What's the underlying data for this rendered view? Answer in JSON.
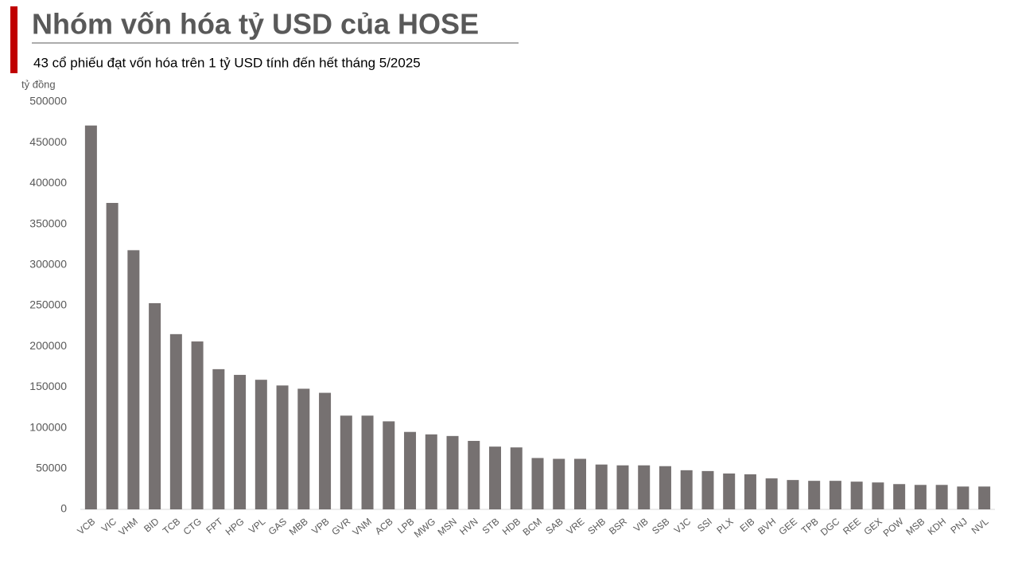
{
  "chart_data": {
    "type": "bar",
    "title": "Nhóm vốn hóa tỷ USD của HOSE",
    "subtitle": "43 cổ phiếu đạt vốn hóa trên 1 tỷ USD tính đến hết tháng 5/2025",
    "y_label": "tỷ đồng",
    "categories": [
      "VCB",
      "VIC",
      "VHM",
      "BID",
      "TCB",
      "CTG",
      "FPT",
      "HPG",
      "VPL",
      "GAS",
      "MBB",
      "VPB",
      "GVR",
      "VNM",
      "ACB",
      "LPB",
      "MWG",
      "MSN",
      "HVN",
      "STB",
      "HDB",
      "BCM",
      "SAB",
      "VRE",
      "SHB",
      "BSR",
      "VIB",
      "SSB",
      "VJC",
      "SSI",
      "PLX",
      "EIB",
      "BVH",
      "GEE",
      "TPB",
      "DGC",
      "REE",
      "GEX",
      "POW",
      "MSB",
      "KDH",
      "PNJ",
      "NVL"
    ],
    "values": [
      471000,
      376000,
      318000,
      253000,
      215000,
      206000,
      172000,
      165000,
      159000,
      152000,
      148000,
      143000,
      115000,
      115000,
      108000,
      95000,
      92000,
      90000,
      84000,
      77000,
      76000,
      63000,
      62000,
      62000,
      55000,
      54000,
      54000,
      53000,
      48000,
      47000,
      44000,
      43000,
      38000,
      36000,
      35000,
      35000,
      34000,
      33000,
      31000,
      30000,
      30000,
      28000,
      28000
    ],
    "color": "#767171",
    "ylim": [
      0,
      500000
    ],
    "yticks": [
      0,
      50000,
      100000,
      150000,
      200000,
      250000,
      300000,
      350000,
      400000,
      450000,
      500000
    ],
    "grid": false
  }
}
